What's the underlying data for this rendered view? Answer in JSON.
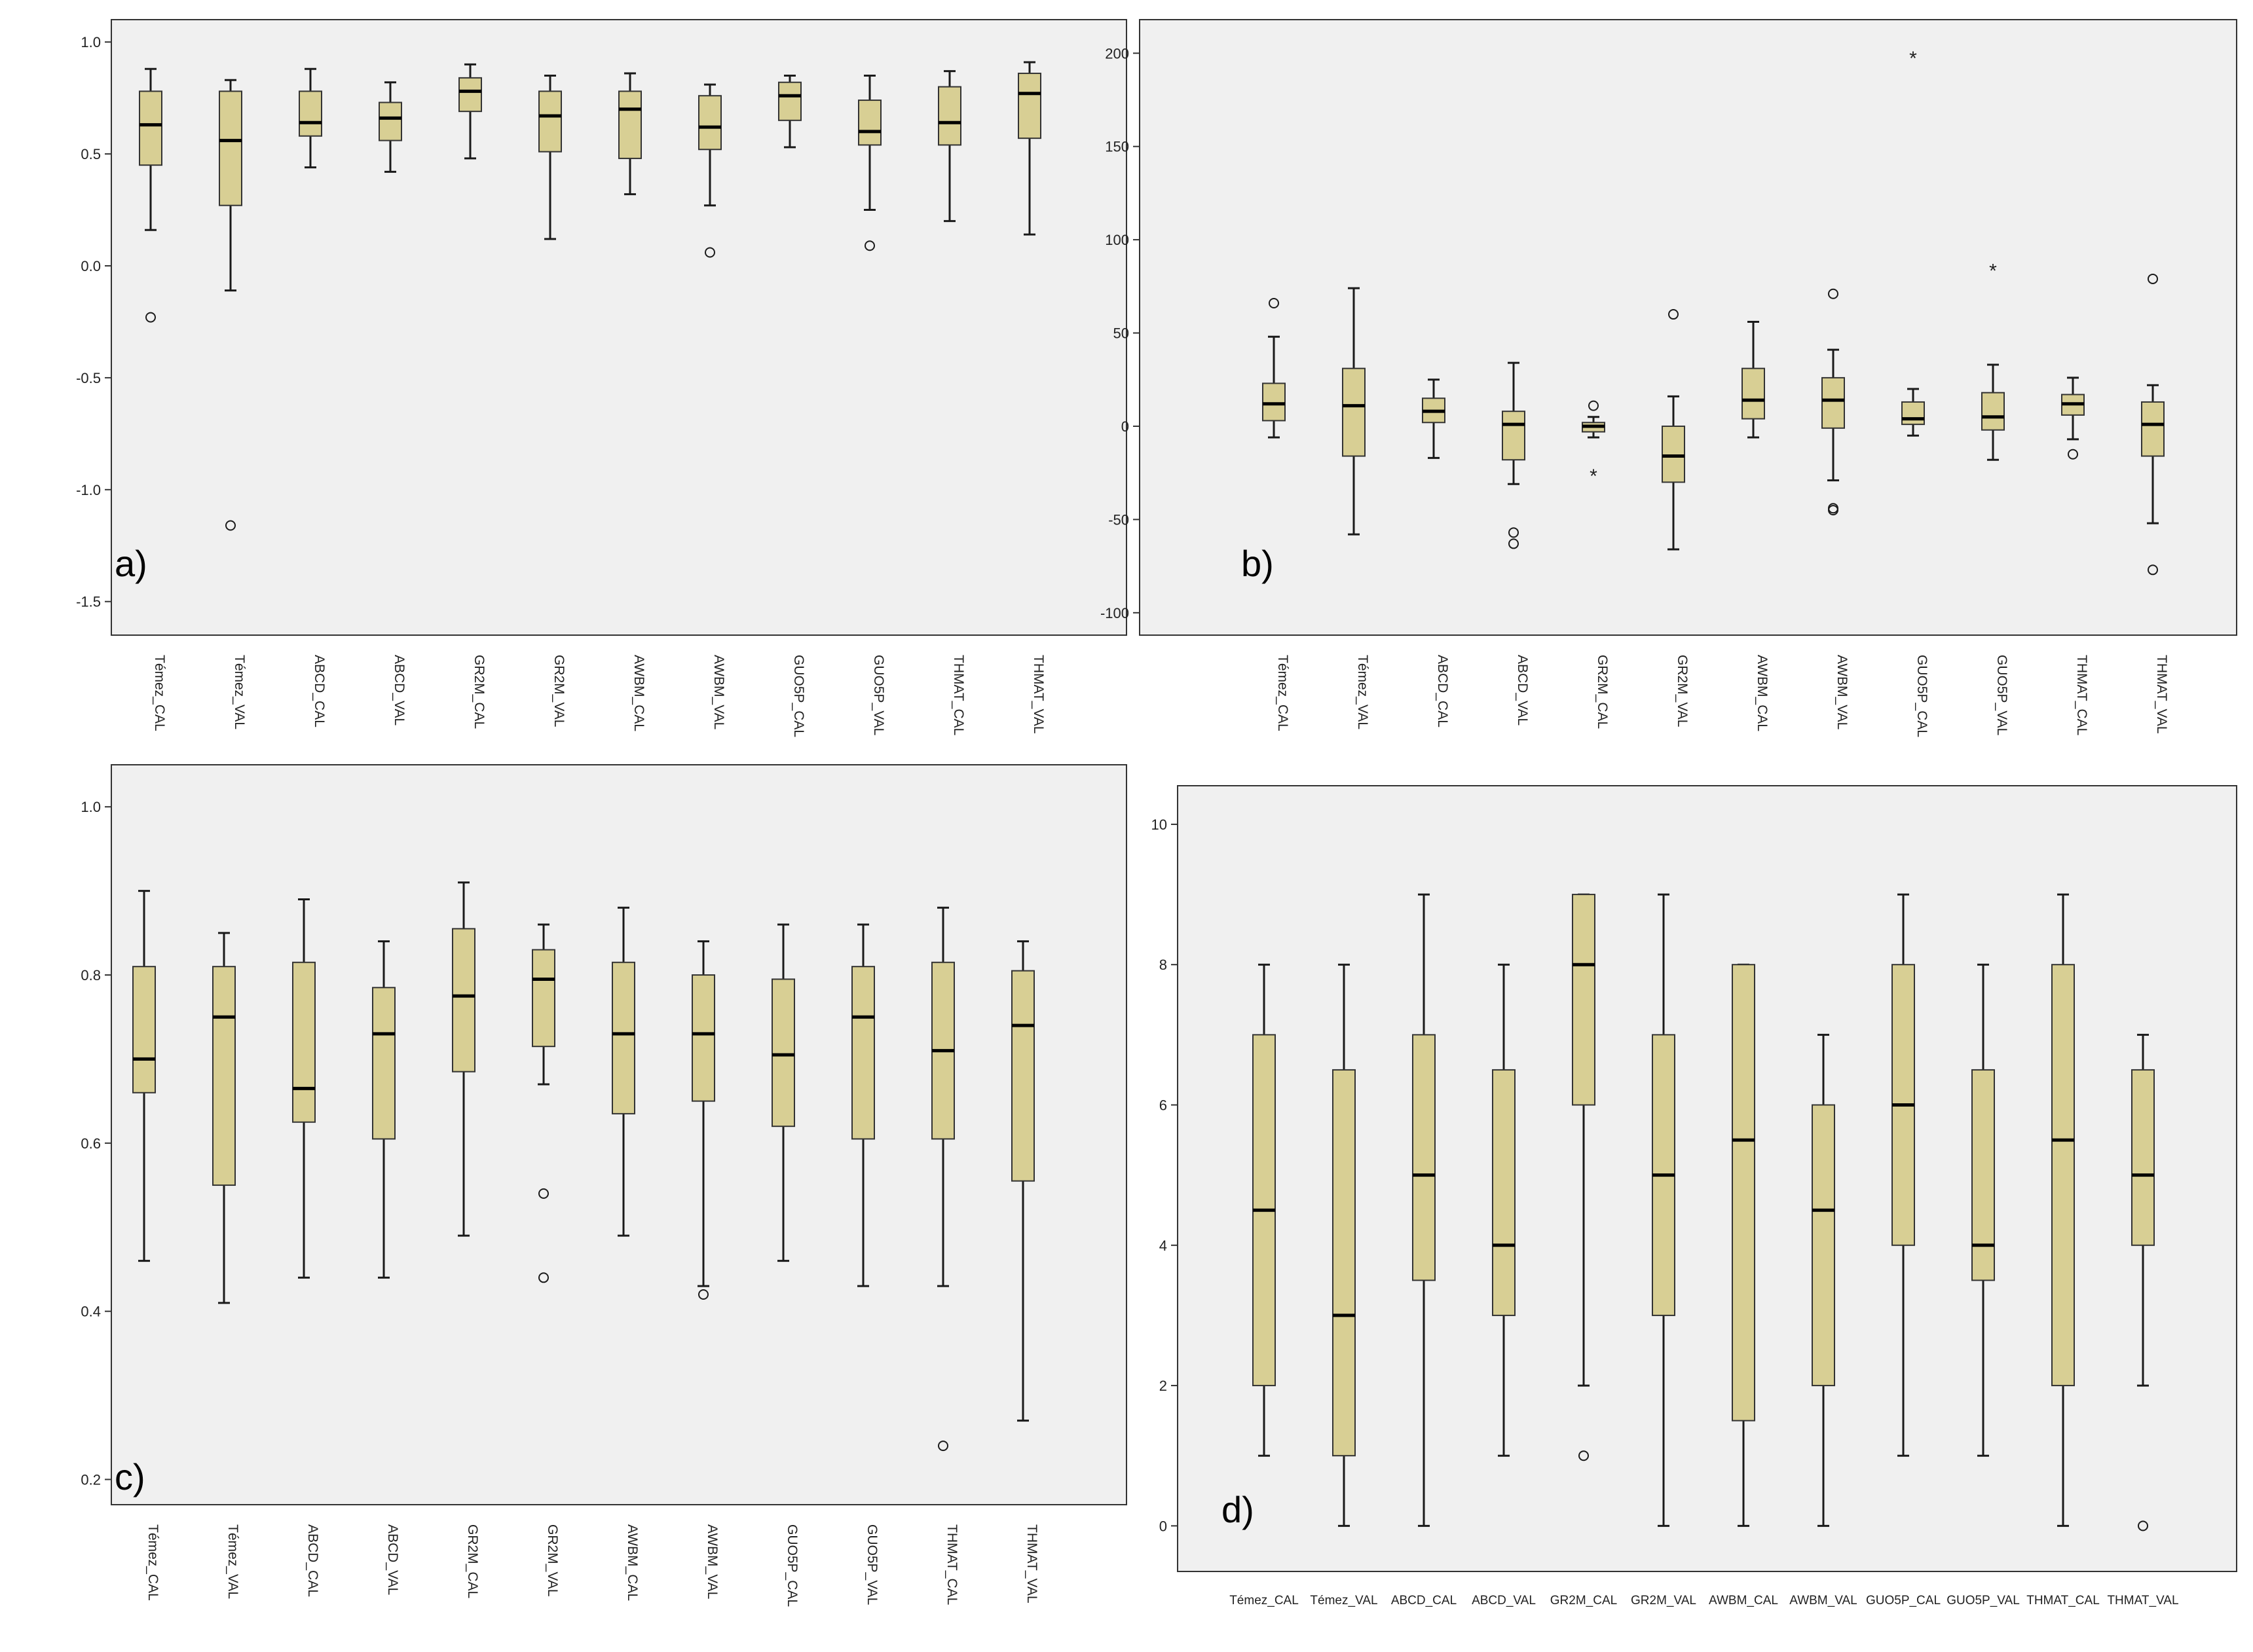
{
  "colors": {
    "box_fill": "#d8cf94",
    "plot_bg": "#f0f0f0",
    "stroke": "#1a1a1a"
  },
  "chart_data": [
    {
      "type": "box",
      "panel_label": "a)",
      "categories": [
        "Témez_CAL",
        "Témez_VAL",
        "ABCD_CAL",
        "ABCD_VAL",
        "GR2M_CAL",
        "GR2M_VAL",
        "AWBM_CAL",
        "AWBM_VAL",
        "GUO5P_CAL",
        "GUO5P_VAL",
        "THMAT_CAL",
        "THMAT_VAL"
      ],
      "ylim": [
        -1.65,
        1.1
      ],
      "yticks": [
        1.0,
        0.5,
        0.0,
        -0.5,
        -1.0,
        -1.5
      ],
      "ytick_labels": [
        "1.0",
        "0.5",
        "0.0",
        "-0.5",
        "-1.0",
        "-1.5"
      ],
      "boxes": [
        {
          "low": 0.16,
          "q1": 0.45,
          "median": 0.63,
          "q3": 0.78,
          "high": 0.88,
          "outliers": [
            -0.23
          ]
        },
        {
          "low": -0.11,
          "q1": 0.27,
          "median": 0.56,
          "q3": 0.78,
          "high": 0.83,
          "outliers": [
            -1.16
          ]
        },
        {
          "low": 0.44,
          "q1": 0.58,
          "median": 0.64,
          "q3": 0.78,
          "high": 0.88,
          "outliers": []
        },
        {
          "low": 0.42,
          "q1": 0.56,
          "median": 0.66,
          "q3": 0.73,
          "high": 0.82,
          "outliers": []
        },
        {
          "low": 0.48,
          "q1": 0.69,
          "median": 0.78,
          "q3": 0.84,
          "high": 0.9,
          "outliers": []
        },
        {
          "low": 0.12,
          "q1": 0.51,
          "median": 0.67,
          "q3": 0.78,
          "high": 0.85,
          "outliers": []
        },
        {
          "low": 0.32,
          "q1": 0.48,
          "median": 0.7,
          "q3": 0.78,
          "high": 0.86,
          "outliers": []
        },
        {
          "low": 0.27,
          "q1": 0.52,
          "median": 0.62,
          "q3": 0.76,
          "high": 0.81,
          "outliers": [
            0.06
          ]
        },
        {
          "low": 0.53,
          "q1": 0.65,
          "median": 0.76,
          "q3": 0.82,
          "high": 0.85,
          "outliers": []
        },
        {
          "low": 0.25,
          "q1": 0.54,
          "median": 0.6,
          "q3": 0.74,
          "high": 0.85,
          "outliers": [
            0.09
          ]
        },
        {
          "low": 0.2,
          "q1": 0.54,
          "median": 0.64,
          "q3": 0.8,
          "high": 0.87,
          "outliers": []
        },
        {
          "low": 0.14,
          "q1": 0.57,
          "median": 0.77,
          "q3": 0.86,
          "high": 0.91,
          "outliers": []
        }
      ]
    },
    {
      "type": "box",
      "panel_label": "b)",
      "categories": [
        "Témez_CAL",
        "Témez_VAL",
        "ABCD_CAL",
        "ABCD_VAL",
        "GR2M_CAL",
        "GR2M_VAL",
        "AWBM_CAL",
        "AWBM_VAL",
        "GUO5P_CAL",
        "GUO5P_VAL",
        "THMAT_CAL",
        "THMAT_VAL"
      ],
      "ylim": [
        -112,
        218
      ],
      "yticks": [
        200,
        150,
        100,
        50,
        0,
        -50,
        -100
      ],
      "ytick_labels": [
        "200",
        "150",
        "100",
        "50",
        "0",
        "-50",
        "-100"
      ],
      "boxes": [
        {
          "low": -6,
          "q1": 3,
          "median": 12,
          "q3": 23,
          "high": 48,
          "outliers": [
            66
          ]
        },
        {
          "low": -58,
          "q1": -16,
          "median": 11,
          "q3": 31,
          "high": 74,
          "outliers": []
        },
        {
          "low": -17,
          "q1": 2,
          "median": 8,
          "q3": 15,
          "high": 25,
          "outliers": []
        },
        {
          "low": -31,
          "q1": -18,
          "median": 1,
          "q3": 8,
          "high": 34,
          "outliers": [
            -57,
            -63
          ]
        },
        {
          "low": -6,
          "q1": -3,
          "median": 0,
          "q3": 2,
          "high": 5,
          "outliers": [
            11
          ],
          "extremes": [
            -26
          ]
        },
        {
          "low": -66,
          "q1": -30,
          "median": -16,
          "q3": 0,
          "high": 16,
          "outliers": [
            60
          ]
        },
        {
          "low": -6,
          "q1": 4,
          "median": 14,
          "q3": 31,
          "high": 56,
          "outliers": []
        },
        {
          "low": -29,
          "q1": -1,
          "median": 14,
          "q3": 26,
          "high": 41,
          "outliers": [
            71,
            -44,
            -45
          ]
        },
        {
          "low": -5,
          "q1": 1,
          "median": 4,
          "q3": 13,
          "high": 20,
          "outliers": [],
          "extremes": [
            198
          ]
        },
        {
          "low": -18,
          "q1": -2,
          "median": 5,
          "q3": 18,
          "high": 33,
          "outliers": [],
          "extremes": [
            84
          ]
        },
        {
          "low": -7,
          "q1": 6,
          "median": 12,
          "q3": 17,
          "high": 26,
          "outliers": [
            -15
          ]
        },
        {
          "low": -52,
          "q1": -16,
          "median": 1,
          "q3": 13,
          "high": 22,
          "outliers": [
            79,
            -77
          ]
        }
      ]
    },
    {
      "type": "box",
      "panel_label": "c)",
      "categories": [
        "Témez_CAL",
        "Témez_VAL",
        "ABCD_CAL",
        "ABCD_VAL",
        "GR2M_CAL",
        "GR2M_VAL",
        "AWBM_CAL",
        "AWBM_VAL",
        "GUO5P_CAL",
        "GUO5P_VAL",
        "THMAT_CAL",
        "THMAT_VAL"
      ],
      "ylim": [
        0.17,
        1.05
      ],
      "yticks": [
        1.0,
        0.8,
        0.6,
        0.4,
        0.2
      ],
      "ytick_labels": [
        "1.0",
        "0.8",
        "0.6",
        "0.4",
        "0.2"
      ],
      "boxes": [
        {
          "low": 0.46,
          "q1": 0.66,
          "median": 0.7,
          "q3": 0.81,
          "high": 0.9,
          "outliers": []
        },
        {
          "low": 0.41,
          "q1": 0.55,
          "median": 0.75,
          "q3": 0.81,
          "high": 0.85,
          "outliers": []
        },
        {
          "low": 0.44,
          "q1": 0.625,
          "median": 0.665,
          "q3": 0.815,
          "high": 0.89,
          "outliers": []
        },
        {
          "low": 0.44,
          "q1": 0.605,
          "median": 0.73,
          "q3": 0.785,
          "high": 0.84,
          "outliers": []
        },
        {
          "low": 0.49,
          "q1": 0.685,
          "median": 0.775,
          "q3": 0.855,
          "high": 0.91,
          "outliers": []
        },
        {
          "low": 0.67,
          "q1": 0.715,
          "median": 0.795,
          "q3": 0.83,
          "high": 0.86,
          "outliers": [
            0.54,
            0.44
          ]
        },
        {
          "low": 0.49,
          "q1": 0.635,
          "median": 0.73,
          "q3": 0.815,
          "high": 0.88,
          "outliers": []
        },
        {
          "low": 0.43,
          "q1": 0.65,
          "median": 0.73,
          "q3": 0.8,
          "high": 0.84,
          "outliers": [
            0.42
          ]
        },
        {
          "low": 0.46,
          "q1": 0.62,
          "median": 0.705,
          "q3": 0.795,
          "high": 0.86,
          "outliers": []
        },
        {
          "low": 0.43,
          "q1": 0.605,
          "median": 0.75,
          "q3": 0.81,
          "high": 0.86,
          "outliers": []
        },
        {
          "low": 0.43,
          "q1": 0.605,
          "median": 0.71,
          "q3": 0.815,
          "high": 0.88,
          "outliers": [
            0.24
          ]
        },
        {
          "low": 0.27,
          "q1": 0.555,
          "median": 0.74,
          "q3": 0.805,
          "high": 0.84,
          "outliers": []
        }
      ]
    },
    {
      "type": "box",
      "panel_label": "d)",
      "categories": [
        "Témez_CAL",
        "Témez_VAL",
        "ABCD_CAL",
        "ABCD_VAL",
        "GR2M_CAL",
        "GR2M_VAL",
        "AWBM_CAL",
        "AWBM_VAL",
        "GUO5P_CAL",
        "GUO5P_VAL",
        "THMAT_CAL",
        "THMAT_VAL"
      ],
      "ylim": [
        -0.65,
        10.55
      ],
      "yticks": [
        10,
        8,
        6,
        4,
        2,
        0
      ],
      "ytick_labels": [
        "10",
        "8",
        "6",
        "4",
        "2",
        "0"
      ],
      "boxes": [
        {
          "low": 1,
          "q1": 2,
          "median": 4.5,
          "q3": 7,
          "high": 8,
          "outliers": []
        },
        {
          "low": 0,
          "q1": 1,
          "median": 3,
          "q3": 6.5,
          "high": 8,
          "outliers": []
        },
        {
          "low": 0,
          "q1": 3.5,
          "median": 5,
          "q3": 7,
          "high": 9,
          "outliers": []
        },
        {
          "low": 1,
          "q1": 3,
          "median": 4,
          "q3": 6.5,
          "high": 8,
          "outliers": []
        },
        {
          "low": 2,
          "q1": 6,
          "median": 8,
          "q3": 9,
          "high": 9,
          "outliers": [
            1
          ]
        },
        {
          "low": 0,
          "q1": 3,
          "median": 5,
          "q3": 7,
          "high": 9,
          "outliers": []
        },
        {
          "low": 0,
          "q1": 1.5,
          "median": 5.5,
          "q3": 8,
          "high": 8,
          "outliers": []
        },
        {
          "low": 0,
          "q1": 2,
          "median": 4.5,
          "q3": 6,
          "high": 7,
          "outliers": []
        },
        {
          "low": 1,
          "q1": 4,
          "median": 6,
          "q3": 8,
          "high": 9,
          "outliers": []
        },
        {
          "low": 1,
          "q1": 3.5,
          "median": 4,
          "q3": 6.5,
          "high": 8,
          "outliers": []
        },
        {
          "low": 0,
          "q1": 2,
          "median": 5.5,
          "q3": 8,
          "high": 9,
          "outliers": []
        },
        {
          "low": 2,
          "q1": 4,
          "median": 5,
          "q3": 6.5,
          "high": 7,
          "outliers": [
            0
          ]
        }
      ]
    }
  ]
}
